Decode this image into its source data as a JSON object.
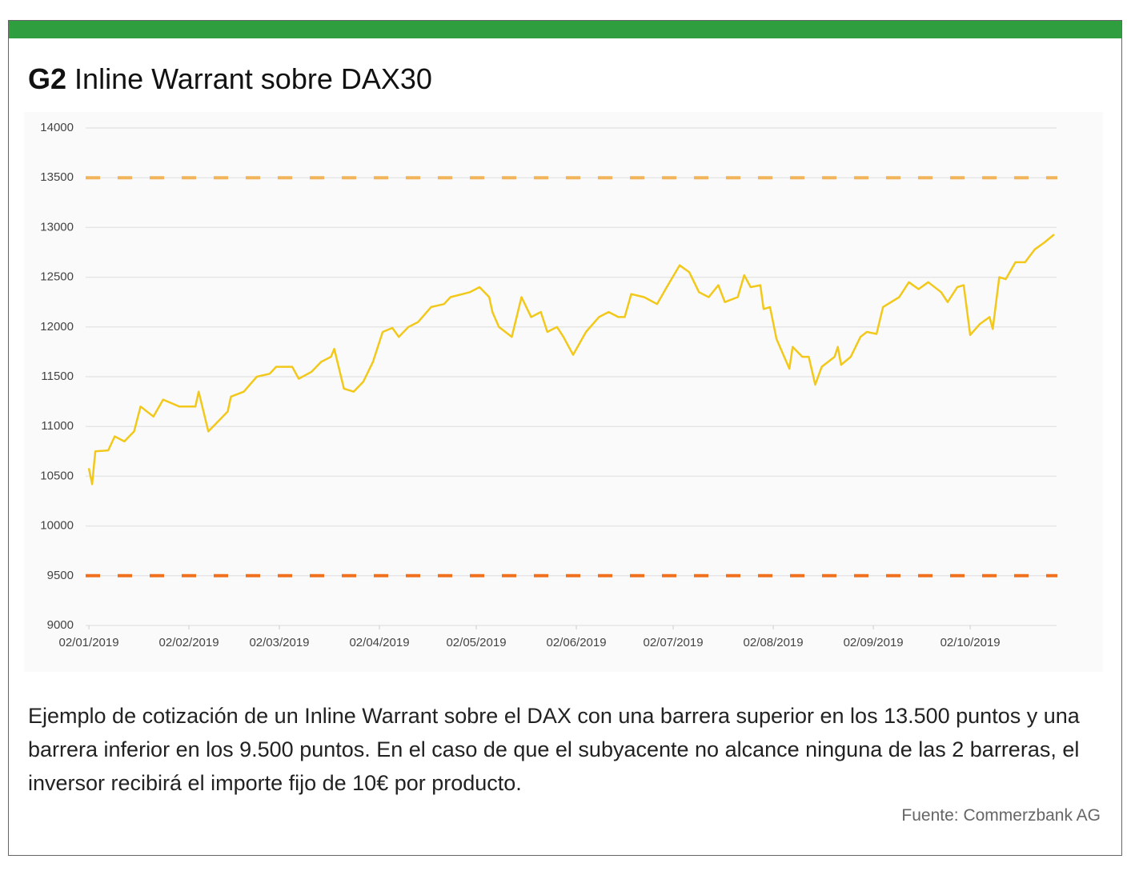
{
  "chart_data": {
    "type": "line",
    "figure_label": "G2",
    "title": "Inline Warrant sobre DAX30",
    "x": [
      "2019-01-02",
      "2019-01-03",
      "2019-01-04",
      "2019-01-08",
      "2019-01-10",
      "2019-01-13",
      "2019-01-16",
      "2019-01-18",
      "2019-01-22",
      "2019-01-25",
      "2019-01-30",
      "2019-02-04",
      "2019-02-05",
      "2019-02-08",
      "2019-02-11",
      "2019-02-14",
      "2019-02-15",
      "2019-02-19",
      "2019-02-23",
      "2019-02-27",
      "2019-03-01",
      "2019-03-06",
      "2019-03-08",
      "2019-03-12",
      "2019-03-15",
      "2019-03-18",
      "2019-03-19",
      "2019-03-22",
      "2019-03-25",
      "2019-03-28",
      "2019-03-31",
      "2019-04-03",
      "2019-04-06",
      "2019-04-08",
      "2019-04-11",
      "2019-04-14",
      "2019-04-18",
      "2019-04-22",
      "2019-04-24",
      "2019-04-30",
      "2019-05-03",
      "2019-05-06",
      "2019-05-07",
      "2019-05-09",
      "2019-05-13",
      "2019-05-16",
      "2019-05-19",
      "2019-05-22",
      "2019-05-24",
      "2019-05-27",
      "2019-05-29",
      "2019-06-01",
      "2019-06-05",
      "2019-06-09",
      "2019-06-12",
      "2019-06-15",
      "2019-06-17",
      "2019-06-19",
      "2019-06-23",
      "2019-06-27",
      "2019-06-30",
      "2019-07-04",
      "2019-07-07",
      "2019-07-10",
      "2019-07-13",
      "2019-07-16",
      "2019-07-18",
      "2019-07-22",
      "2019-07-24",
      "2019-07-26",
      "2019-07-29",
      "2019-07-30",
      "2019-08-01",
      "2019-08-03",
      "2019-08-07",
      "2019-08-08",
      "2019-08-11",
      "2019-08-13",
      "2019-08-15",
      "2019-08-17",
      "2019-08-21",
      "2019-08-22",
      "2019-08-23",
      "2019-08-26",
      "2019-08-29",
      "2019-08-31",
      "2019-09-03",
      "2019-09-05",
      "2019-09-10",
      "2019-09-13",
      "2019-09-16",
      "2019-09-19",
      "2019-09-23",
      "2019-09-25",
      "2019-09-28",
      "2019-09-30",
      "2019-10-02",
      "2019-10-05",
      "2019-10-08",
      "2019-10-09",
      "2019-10-11",
      "2019-10-13",
      "2019-10-16",
      "2019-10-19",
      "2019-10-22",
      "2019-10-25",
      "2019-10-28"
    ],
    "series": [
      {
        "color": "#f2c81a",
        "values": [
          10580,
          10420,
          10750,
          10760,
          10900,
          10850,
          10950,
          11200,
          11100,
          11270,
          11200,
          11200,
          11350,
          10950,
          11050,
          11150,
          11300,
          11350,
          11500,
          11530,
          11600,
          11600,
          11480,
          11550,
          11650,
          11700,
          11780,
          11380,
          11350,
          11450,
          11650,
          11950,
          11990,
          11900,
          12000,
          12050,
          12200,
          12230,
          12300,
          12350,
          12400,
          12300,
          12150,
          12000,
          11900,
          12300,
          12100,
          12150,
          11950,
          12000,
          11900,
          11720,
          11950,
          12100,
          12150,
          12100,
          12100,
          12330,
          12300,
          12230,
          12400,
          12620,
          12550,
          12350,
          12300,
          12420,
          12250,
          12300,
          12520,
          12400,
          12420,
          12180,
          12200,
          11880,
          11580,
          11800,
          11700,
          11700,
          11420,
          11600,
          11700,
          11800,
          11620,
          11700,
          11900,
          11950,
          11930,
          12200,
          12300,
          12450,
          12380,
          12450,
          12350,
          12250,
          12400,
          12420,
          11920,
          12030,
          12100,
          11980,
          12500,
          12480,
          12650,
          12650,
          12780,
          12850,
          12930
        ]
      }
    ],
    "reference_lines": [
      {
        "value": 13500,
        "color": "#f2b45a"
      },
      {
        "value": 9500,
        "color": "#f0701e"
      }
    ],
    "xlim": [
      "2019-01-01",
      "2019-10-29"
    ],
    "xticks": [
      {
        "value": "2019-01-02",
        "label": "02/01/2019"
      },
      {
        "value": "2019-02-02",
        "label": "02/02/2019"
      },
      {
        "value": "2019-03-02",
        "label": "02/03/2019"
      },
      {
        "value": "2019-04-02",
        "label": "02/04/2019"
      },
      {
        "value": "2019-05-02",
        "label": "02/05/2019"
      },
      {
        "value": "2019-06-02",
        "label": "02/06/2019"
      },
      {
        "value": "2019-07-02",
        "label": "02/07/2019"
      },
      {
        "value": "2019-08-02",
        "label": "02/08/2019"
      },
      {
        "value": "2019-09-02",
        "label": "02/09/2019"
      },
      {
        "value": "2019-10-02",
        "label": "02/10/2019"
      }
    ],
    "ylim": [
      9000,
      14000
    ],
    "yticks": [
      9000,
      9500,
      10000,
      10500,
      11000,
      11500,
      12000,
      12500,
      13000,
      13500,
      14000
    ],
    "grid": true
  },
  "caption": "Ejemplo de cotización de un Inline Warrant sobre el DAX con una barrera superior en los 13.500 puntos y una barrera inferior en los 9.500 puntos. En el caso de que el subyacente no alcance ninguna de las 2 barreras, el inversor recibirá el importe fijo de 10€ por producto.",
  "source": "Fuente: Commerzbank AG"
}
